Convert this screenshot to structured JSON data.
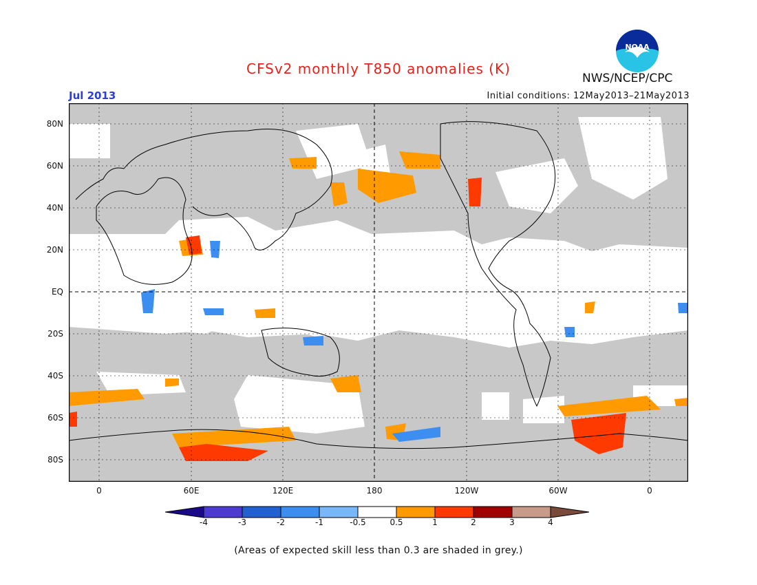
{
  "header": {
    "title": "CFSv2 monthly T850 anomalies (K)",
    "month": "Jul 2013",
    "initial_conditions": "Initial conditions: 12May2013–21May2013",
    "agency": "NWS/NCEP/CPC",
    "logo_text": "NOAA"
  },
  "axes": {
    "lat_labels": [
      "80N",
      "60N",
      "40N",
      "20N",
      "EQ",
      "20S",
      "40S",
      "60S",
      "80S"
    ],
    "lon_labels": [
      "0",
      "60E",
      "120E",
      "180",
      "120W",
      "60W",
      "0"
    ]
  },
  "legend": {
    "tick_labels": [
      "-4",
      "-3",
      "-2",
      "-1",
      "-0.5",
      "0.5",
      "1",
      "2",
      "3",
      "4"
    ],
    "colors": [
      "#1a0a8a",
      "#4b3bd0",
      "#2060d0",
      "#3c8ef0",
      "#78b8f8",
      "#ffffff",
      "#ff9a00",
      "#ff3a00",
      "#a00000",
      "#c89a8a",
      "#7a4a3a"
    ]
  },
  "footnote": "(Areas of expected skill less than 0.3 are shaded in grey.)",
  "colors": {
    "grey_low_skill": "#c8c8c8",
    "title": "#e8201c",
    "month": "#2a3fd8"
  }
}
